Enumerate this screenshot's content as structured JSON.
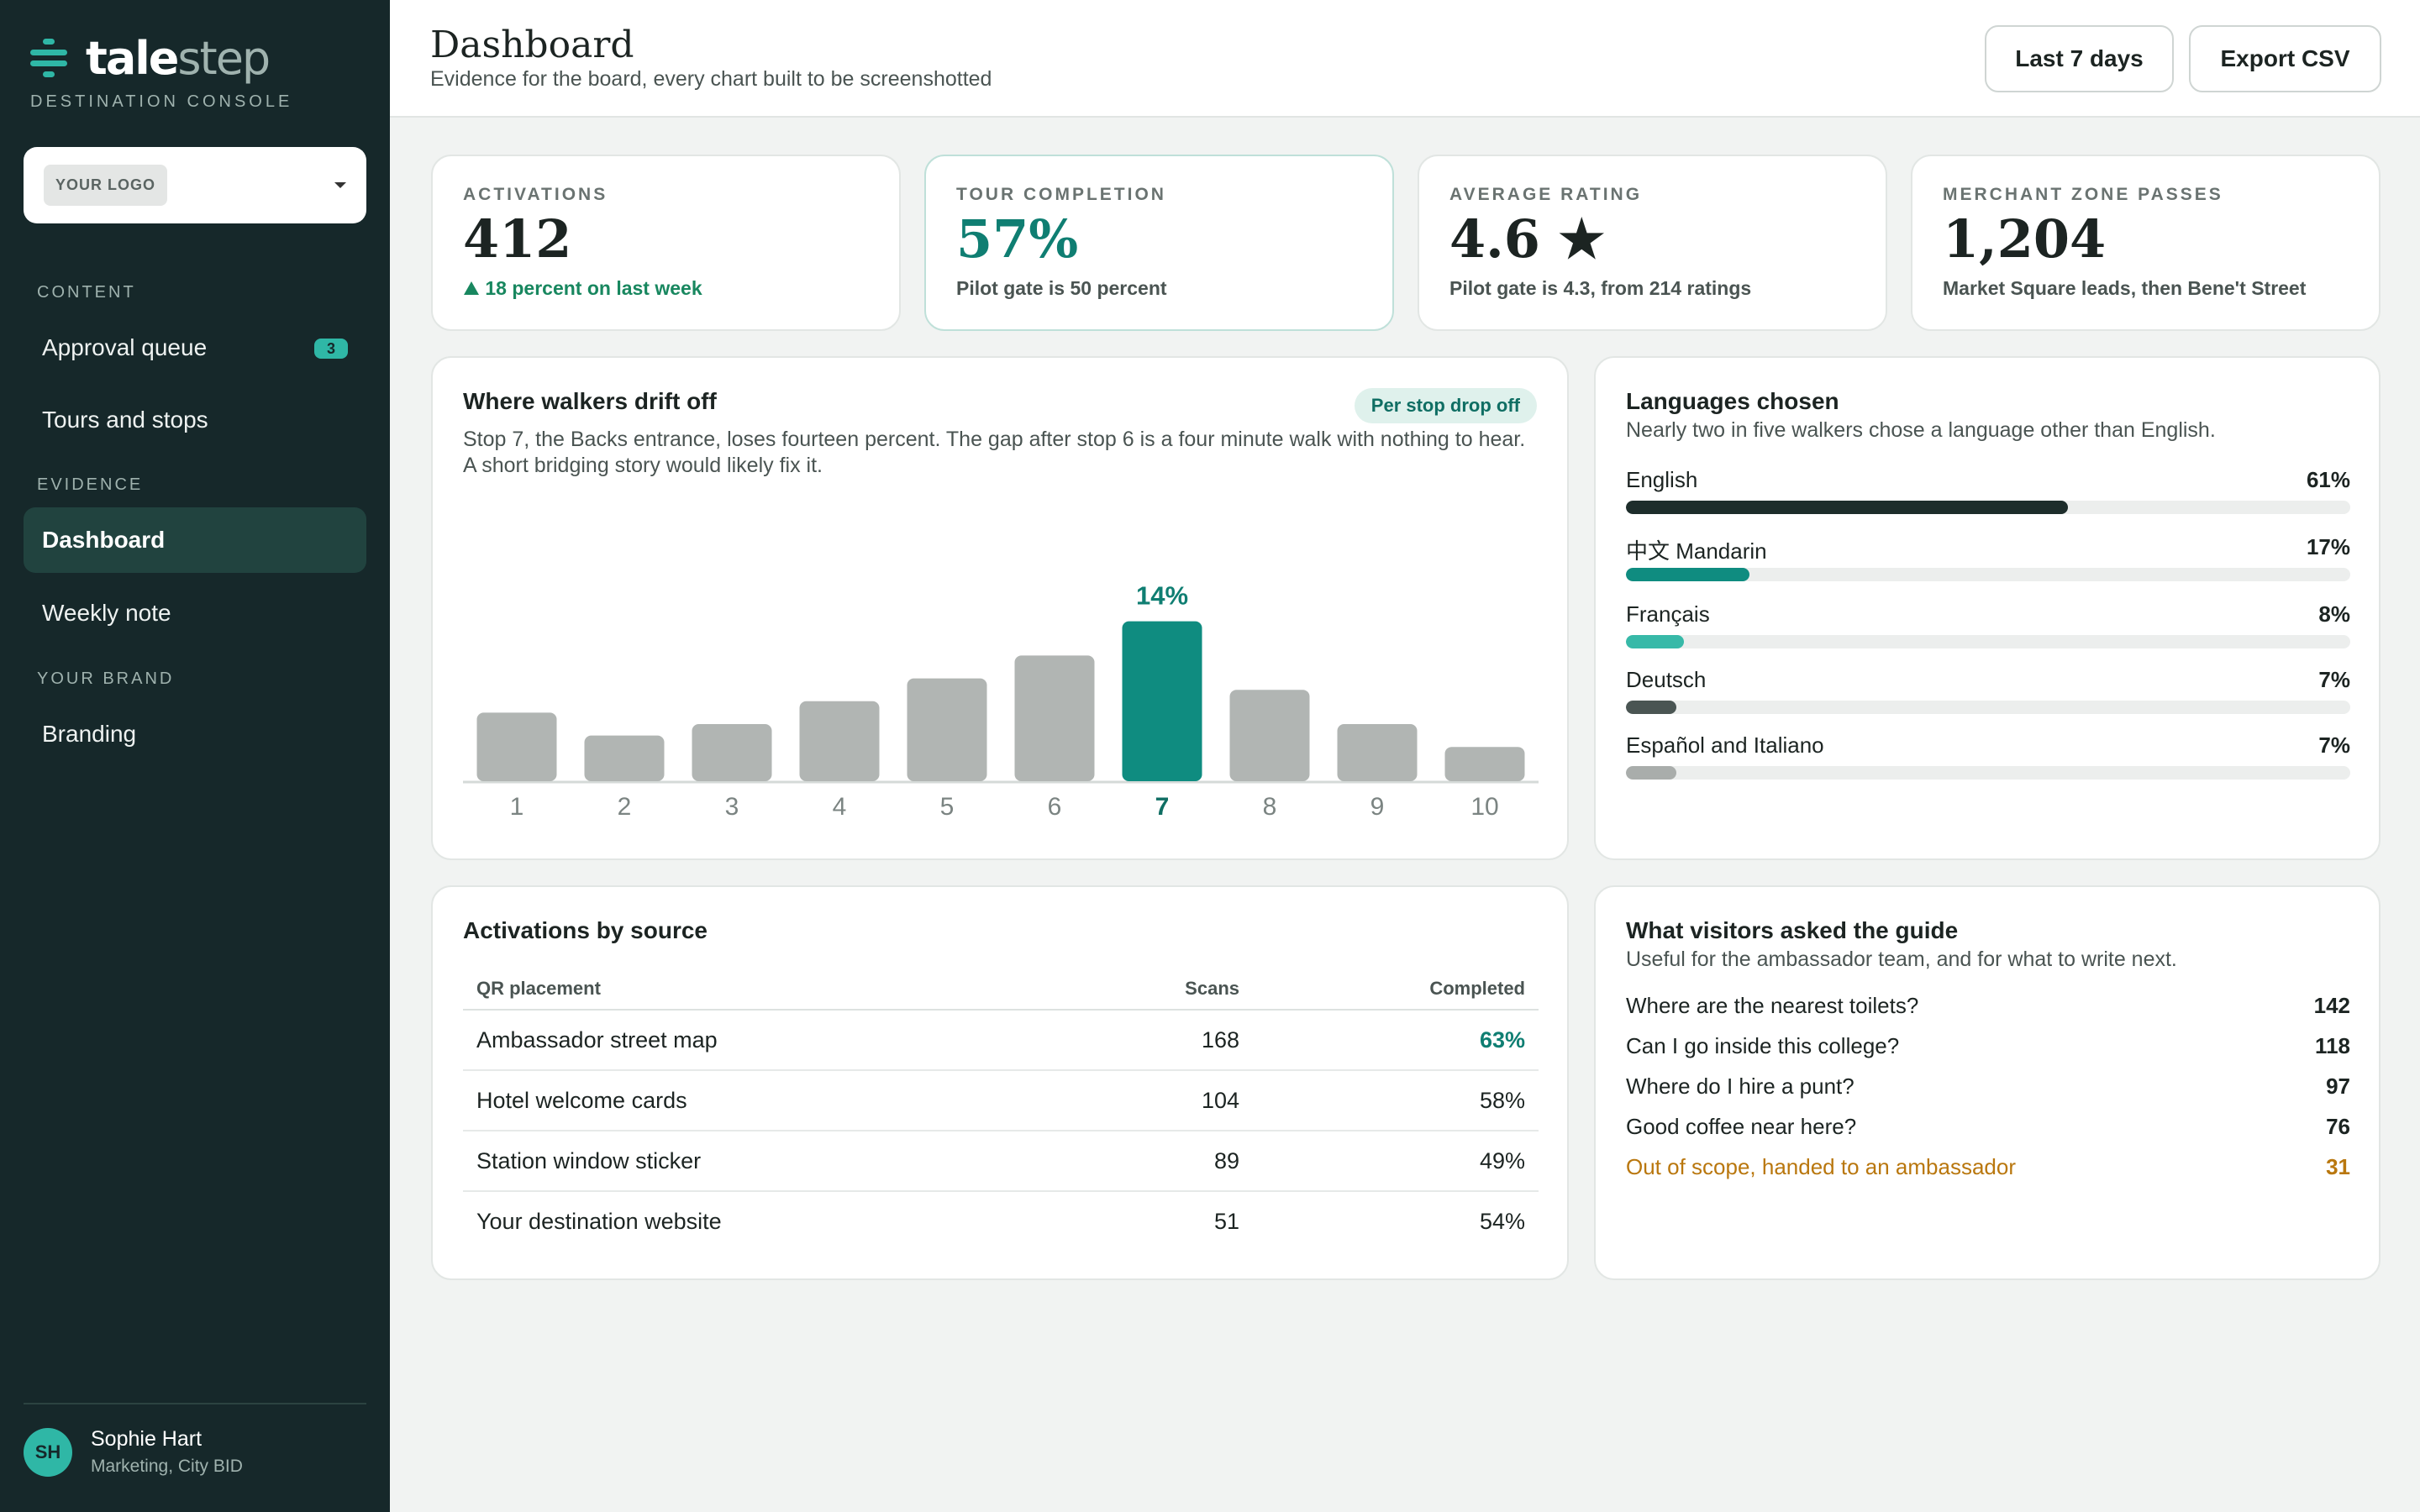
{
  "app": {
    "brand_bold": "tale",
    "brand_light": "step",
    "console_label": "DESTINATION CONSOLE",
    "logo_placeholder": "YOUR LOGO"
  },
  "nav": {
    "sections": [
      {
        "label": "CONTENT"
      },
      {
        "label": "EVIDENCE"
      },
      {
        "label": "YOUR BRAND"
      }
    ],
    "items": [
      {
        "label": "Approval queue",
        "badge": "3"
      },
      {
        "label": "Tours and stops"
      },
      {
        "label": "Dashboard",
        "active": true
      },
      {
        "label": "Weekly note"
      },
      {
        "label": "Branding"
      }
    ]
  },
  "user": {
    "initials": "SH",
    "name": "Sophie Hart",
    "role": "Marketing, City BID"
  },
  "header": {
    "title": "Dashboard",
    "subtitle": "Evidence for the board, every chart built to be screenshotted",
    "range_button": "Last 7 days",
    "export_button": "Export CSV"
  },
  "kpis": [
    {
      "label": "ACTIVATIONS",
      "value": "412",
      "sub": "18 percent on last week",
      "trend_icon": "triangle-up"
    },
    {
      "label": "TOUR COMPLETION",
      "value": "57%",
      "sub": "Pilot gate is 50 percent"
    },
    {
      "label": "AVERAGE RATING",
      "value": "4.6 ★",
      "sub": "Pilot gate is 4.3, from 214 ratings"
    },
    {
      "label": "MERCHANT ZONE PASSES",
      "value": "1,204",
      "sub": "Market Square leads, then Bene't Street"
    }
  ],
  "dropoff": {
    "title": "Where walkers drift off",
    "pill": "Per stop drop off",
    "desc": "Stop 7, the Backs entrance, loses fourteen percent. The gap after stop 6 is a four minute walk with nothing to hear. A short bridging story would likely fix it."
  },
  "chart_data": {
    "type": "bar",
    "categories": [
      "1",
      "2",
      "3",
      "4",
      "5",
      "6",
      "7",
      "8",
      "9",
      "10"
    ],
    "values": [
      6,
      4,
      5,
      7,
      9,
      11,
      14,
      8,
      5,
      3
    ],
    "highlight_index": 6,
    "highlight_label": "14%",
    "ylim": [
      0,
      15
    ],
    "colors": {
      "bar": "#b1b5b3",
      "highlight": "#0f8c80",
      "label": "#0f7e72"
    }
  },
  "languages": {
    "title": "Languages chosen",
    "desc": "Nearly two in five walkers chose a language other than English.",
    "items": [
      {
        "name": "English",
        "pct": "61%",
        "value": 0.61,
        "color": "#1d2d2b"
      },
      {
        "name": "中文 Mandarin",
        "pct": "17%",
        "value": 0.17,
        "color": "#0f8c80"
      },
      {
        "name": "Français",
        "pct": "8%",
        "value": 0.08,
        "color": "#37b9a8"
      },
      {
        "name": "Deutsch",
        "pct": "7%",
        "value": 0.07,
        "color": "#4a5553"
      },
      {
        "name": "Español and Italiano",
        "pct": "7%",
        "value": 0.07,
        "color": "#a9adab"
      }
    ]
  },
  "sources": {
    "title": "Activations by source",
    "columns": [
      "QR placement",
      "Scans",
      "Completed"
    ],
    "rows": [
      [
        "Ambassador street map",
        "168",
        "63%"
      ],
      [
        "Hotel welcome cards",
        "104",
        "58%"
      ],
      [
        "Station window sticker",
        "89",
        "49%"
      ],
      [
        "Your destination website",
        "51",
        "54%"
      ]
    ]
  },
  "questions": {
    "title": "What visitors asked the guide",
    "desc": "Useful for the ambassador team, and for what to write next.",
    "items": [
      {
        "text": "Where are the nearest toilets?",
        "count": "142"
      },
      {
        "text": "Can I go inside this college?",
        "count": "118"
      },
      {
        "text": "Where do I hire a punt?",
        "count": "97"
      },
      {
        "text": "Good coffee near here?",
        "count": "76"
      },
      {
        "text": "Out of scope, handed to an ambassador",
        "count": "31",
        "flag": true
      }
    ]
  }
}
